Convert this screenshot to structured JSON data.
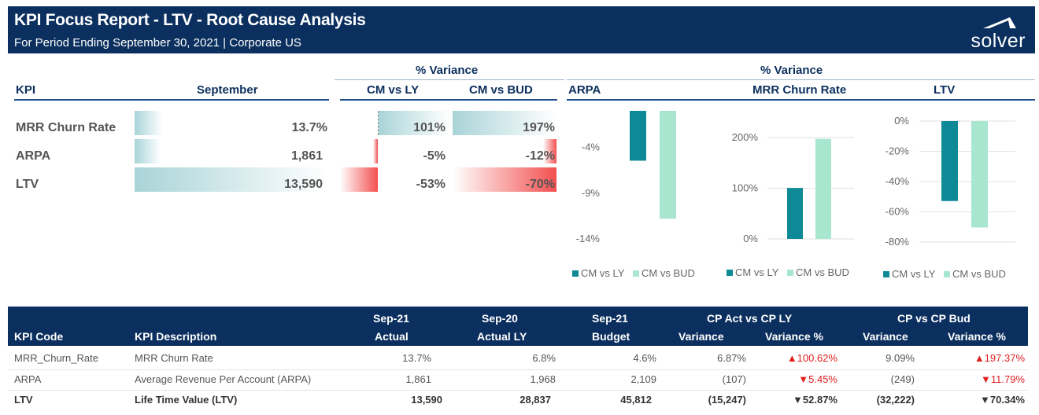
{
  "header": {
    "title": "KPI Focus Report - LTV - Root Cause Analysis",
    "subtitle": "For Period Ending September 30, 2021 | Corporate US",
    "logo_text": "solver",
    "bg_color": "#0b2f5e"
  },
  "summary": {
    "group_left": "% Variance",
    "group_right": "% Variance",
    "col_kpi": "KPI",
    "col_month": "September",
    "col_cm_ly": "CM vs LY",
    "col_cm_bud": "CM vs BUD",
    "chart_arpa": "ARPA",
    "chart_churn": "MRR Churn Rate",
    "chart_ltv": "LTV",
    "rows": [
      {
        "name": "MRR Churn Rate",
        "value": "13.7%",
        "value_num": 13.7,
        "cm_ly": "101%",
        "cm_ly_num": 101,
        "cm_bud": "197%",
        "cm_bud_num": 197
      },
      {
        "name": "ARPA",
        "value": "1,861",
        "value_num": 1861,
        "cm_ly": "-5%",
        "cm_ly_num": -5,
        "cm_bud": "-12%",
        "cm_bud_num": -12
      },
      {
        "name": "LTV",
        "value": "13,590",
        "value_num": 13590,
        "cm_ly": "-53%",
        "cm_ly_num": -53,
        "cm_bud": "-70%",
        "cm_bud_num": -70
      }
    ]
  },
  "chart_data": [
    {
      "type": "bar",
      "title": "ARPA",
      "categories": [
        ""
      ],
      "series": [
        {
          "name": "CM vs LY",
          "values": [
            -5.45
          ]
        },
        {
          "name": "CM vs BUD",
          "values": [
            -11.79
          ]
        }
      ],
      "ylim": [
        -14,
        0
      ],
      "yticks": [
        "-4%",
        "-9%",
        "-14%"
      ],
      "ytick_values": [
        -4,
        -9,
        -14
      ],
      "legend": "bottom",
      "grid": false,
      "colors": [
        "#0e8a96",
        "#a8e6cf"
      ]
    },
    {
      "type": "bar",
      "title": "MRR Churn Rate",
      "categories": [
        ""
      ],
      "series": [
        {
          "name": "CM vs LY",
          "values": [
            100.62
          ]
        },
        {
          "name": "CM vs BUD",
          "values": [
            197.37
          ]
        }
      ],
      "ylim": [
        0,
        200
      ],
      "yticks": [
        "200%",
        "100%",
        "0%"
      ],
      "ytick_values": [
        200,
        100,
        0
      ],
      "legend": "bottom",
      "grid": true,
      "colors": [
        "#0e8a96",
        "#a8e6cf"
      ]
    },
    {
      "type": "bar",
      "title": "LTV",
      "categories": [
        ""
      ],
      "series": [
        {
          "name": "CM vs LY",
          "values": [
            -52.87
          ]
        },
        {
          "name": "CM vs BUD",
          "values": [
            -70.34
          ]
        }
      ],
      "ylim": [
        -80,
        0
      ],
      "yticks": [
        "0%",
        "-20%",
        "-40%",
        "-60%",
        "-80%"
      ],
      "ytick_values": [
        0,
        -20,
        -40,
        -60,
        -80
      ],
      "legend": "bottom",
      "grid": true,
      "colors": [
        "#0e8a96",
        "#a8e6cf"
      ]
    }
  ],
  "table": {
    "headers_top": {
      "sep21": "Sep-21",
      "sep20": "Sep-20",
      "sep21b": "Sep-21",
      "cp_act": "CP Act vs CP LY",
      "cp_bud": "CP vs CP Bud"
    },
    "headers": {
      "kpi_code": "KPI Code",
      "kpi_desc": "KPI Description",
      "actual": "Actual",
      "actual_ly": "Actual LY",
      "budget": "Budget",
      "var1": "Variance",
      "varpct1": "Variance %",
      "var2": "Variance",
      "varpct2": "Variance %"
    },
    "rows": [
      {
        "code": "MRR_Churn_Rate",
        "desc": "MRR Churn Rate",
        "actual": "13.7%",
        "actual_ly": "6.8%",
        "budget": "4.6%",
        "var1": "6.87%",
        "varpct1": "▲100.62%",
        "var2": "9.09%",
        "varpct2": "▲197.37%",
        "bold": false
      },
      {
        "code": "ARPA",
        "desc": "Average Revenue Per Account (ARPA)",
        "actual": "1,861",
        "actual_ly": "1,968",
        "budget": "2,109",
        "var1": "(107)",
        "varpct1": "▼5.45%",
        "var2": "(249)",
        "varpct2": "▼11.79%",
        "bold": false
      },
      {
        "code": "LTV",
        "desc": "Life Time Value (LTV)",
        "actual": "13,590",
        "actual_ly": "28,837",
        "budget": "45,812",
        "var1": "(15,247)",
        "varpct1": "▼52.87%",
        "var2": "(32,222)",
        "varpct2": "▼70.34%",
        "bold": true
      }
    ]
  }
}
